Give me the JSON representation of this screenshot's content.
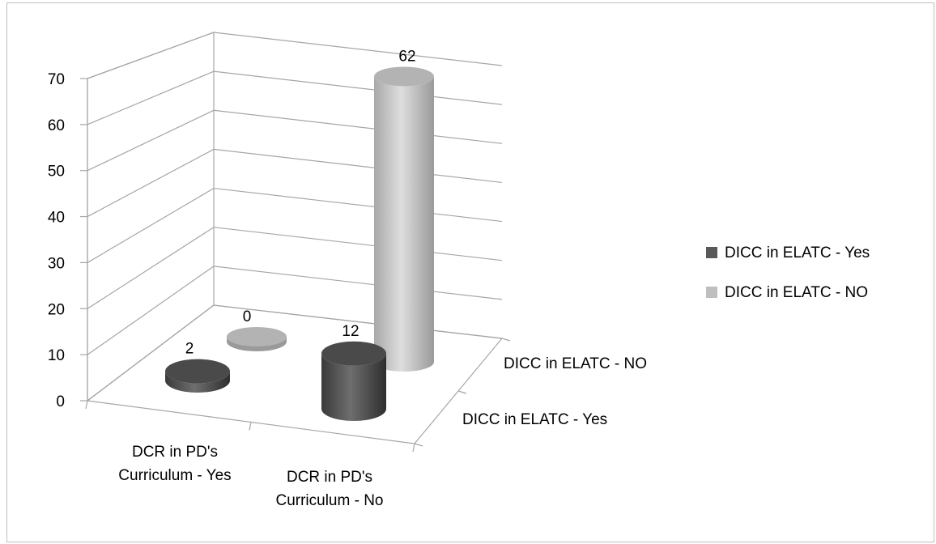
{
  "chart_data": {
    "type": "bar",
    "title": "",
    "categories": [
      "DCR in PD's Curriculum - Yes",
      "DCR in PD's Curriculum - No"
    ],
    "category_lines": [
      [
        "DCR in PD's",
        "Curriculum - Yes"
      ],
      [
        "DCR in PD's",
        "Curriculum - No"
      ]
    ],
    "series": [
      {
        "name": "DICC in ELATC - Yes",
        "values": [
          2,
          12
        ],
        "color": "#595959"
      },
      {
        "name": "DICC in ELATC - NO",
        "values": [
          0,
          62
        ],
        "color": "#bfbfbf"
      }
    ],
    "depth_labels": [
      "DICC in ELATC - Yes",
      "DICC in ELATC - NO"
    ],
    "value_labels": [
      [
        "2",
        "12"
      ],
      [
        "0",
        "62"
      ]
    ],
    "ylim": [
      0,
      70
    ],
    "yticks": [
      0,
      10,
      20,
      30,
      40,
      50,
      60,
      70
    ],
    "grid": true,
    "legend": "right",
    "shape": "cylinder-3d"
  }
}
